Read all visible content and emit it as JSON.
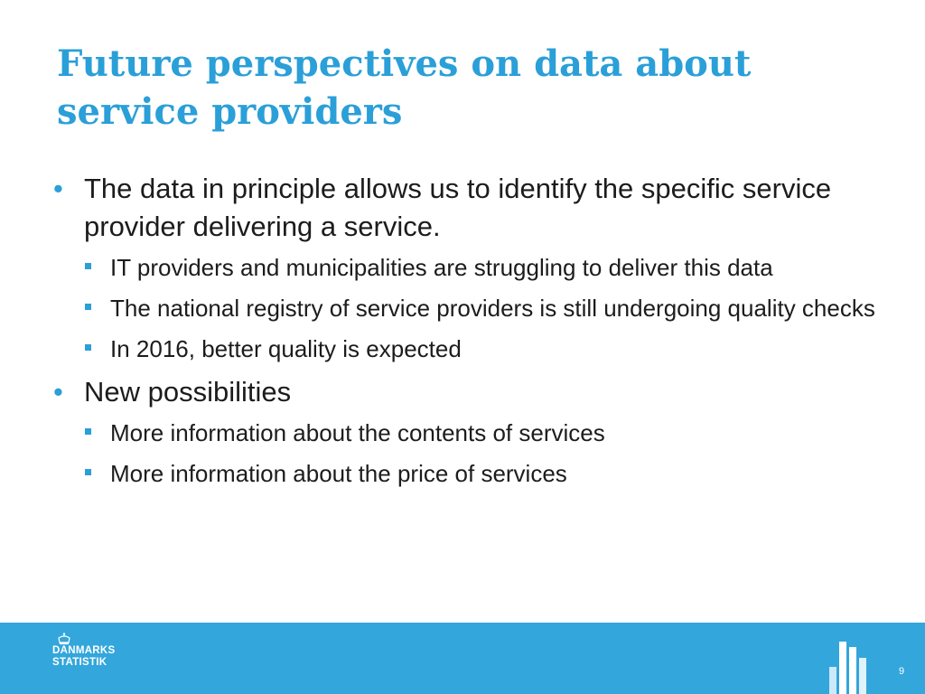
{
  "slide": {
    "title": "Future perspectives on data about service providers",
    "bullets": [
      {
        "text": "The data in principle allows us to identify the specific service provider delivering a service.",
        "subs": [
          "IT providers and municipalities are struggling to deliver this data",
          "The national registry of service providers is still undergoing quality checks",
          "In 2016, better quality is expected"
        ]
      },
      {
        "text": "New possibilities",
        "subs": [
          "More information about the contents of services",
          "More information about the price of services"
        ]
      }
    ]
  },
  "footer": {
    "logo_line1": "DANMARKS",
    "logo_line2": "STATISTIK",
    "logo_icon": "crown-icon",
    "chart_icon": "bar-chart-icon",
    "page_number": "9"
  },
  "colors": {
    "accent": "#2a9fd8",
    "footer_bg": "#33a6db",
    "text": "#1c1c1c"
  }
}
